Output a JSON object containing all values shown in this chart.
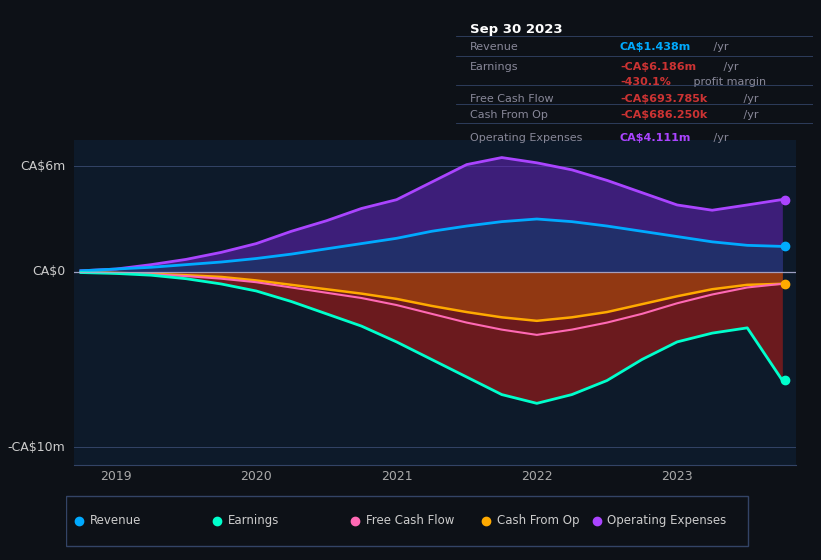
{
  "bg_color": "#0d1117",
  "plot_bg_color": "#0d1a2a",
  "title_box": {
    "date": "Sep 30 2023",
    "rows": [
      {
        "label": "Revenue",
        "value": "CA$1.438m",
        "value_color": "#00aaff",
        "suffix": " /yr"
      },
      {
        "label": "Earnings",
        "value": "-CA$6.186m",
        "value_color": "#cc3333",
        "suffix": " /yr"
      },
      {
        "label": "",
        "value": "-430.1%",
        "value_color": "#cc3333",
        "suffix": " profit margin"
      },
      {
        "label": "Free Cash Flow",
        "value": "-CA$693.785k",
        "value_color": "#cc3333",
        "suffix": " /yr"
      },
      {
        "label": "Cash From Op",
        "value": "-CA$686.250k",
        "value_color": "#cc3333",
        "suffix": " /yr"
      },
      {
        "label": "Operating Expenses",
        "value": "CA$4.111m",
        "value_color": "#aa44ff",
        "suffix": " /yr"
      }
    ]
  },
  "y_labels": [
    "CA$6m",
    "CA$0",
    "-CA$10m"
  ],
  "y_label_vals": [
    6,
    0,
    -10
  ],
  "x_ticks": [
    2019,
    2020,
    2021,
    2022,
    2023
  ],
  "ylim": [
    -11,
    7.5
  ],
  "xlim": [
    2018.7,
    2023.85
  ],
  "colors": {
    "revenue": "#00aaff",
    "earnings_line": "#00ffcc",
    "free_cash_flow": "#ff69b4",
    "cash_from_op": "#ffaa00",
    "operating_expenses": "#aa44ff"
  },
  "legend": [
    {
      "label": "Revenue",
      "color": "#00aaff"
    },
    {
      "label": "Earnings",
      "color": "#00ffcc"
    },
    {
      "label": "Free Cash Flow",
      "color": "#ff69b4"
    },
    {
      "label": "Cash From Op",
      "color": "#ffaa00"
    },
    {
      "label": "Operating Expenses",
      "color": "#aa44ff"
    }
  ],
  "t": [
    2018.75,
    2019.0,
    2019.25,
    2019.5,
    2019.75,
    2020.0,
    2020.25,
    2020.5,
    2020.75,
    2021.0,
    2021.25,
    2021.5,
    2021.75,
    2022.0,
    2022.25,
    2022.5,
    2022.75,
    2023.0,
    2023.25,
    2023.5,
    2023.75
  ],
  "revenue": [
    0.05,
    0.15,
    0.25,
    0.4,
    0.55,
    0.75,
    1.0,
    1.3,
    1.6,
    1.9,
    2.3,
    2.6,
    2.85,
    3.0,
    2.85,
    2.6,
    2.3,
    2.0,
    1.7,
    1.5,
    1.44
  ],
  "earnings": [
    -0.05,
    -0.1,
    -0.2,
    -0.4,
    -0.7,
    -1.1,
    -1.7,
    -2.4,
    -3.1,
    -4.0,
    -5.0,
    -6.0,
    -7.0,
    -7.5,
    -7.0,
    -6.2,
    -5.0,
    -4.0,
    -3.5,
    -3.2,
    -6.19
  ],
  "free_cash_flow": [
    -0.03,
    -0.08,
    -0.15,
    -0.25,
    -0.4,
    -0.6,
    -0.9,
    -1.2,
    -1.5,
    -1.9,
    -2.4,
    -2.9,
    -3.3,
    -3.6,
    -3.3,
    -2.9,
    -2.4,
    -1.8,
    -1.3,
    -0.9,
    -0.69
  ],
  "cash_from_op": [
    -0.03,
    -0.07,
    -0.12,
    -0.2,
    -0.3,
    -0.5,
    -0.75,
    -1.0,
    -1.25,
    -1.55,
    -1.95,
    -2.3,
    -2.6,
    -2.8,
    -2.6,
    -2.3,
    -1.85,
    -1.4,
    -1.0,
    -0.75,
    -0.69
  ],
  "operating_expenses": [
    0.05,
    0.15,
    0.4,
    0.7,
    1.1,
    1.6,
    2.3,
    2.9,
    3.6,
    4.1,
    5.1,
    6.1,
    6.5,
    6.2,
    5.8,
    5.2,
    4.5,
    3.8,
    3.5,
    3.8,
    4.11
  ]
}
